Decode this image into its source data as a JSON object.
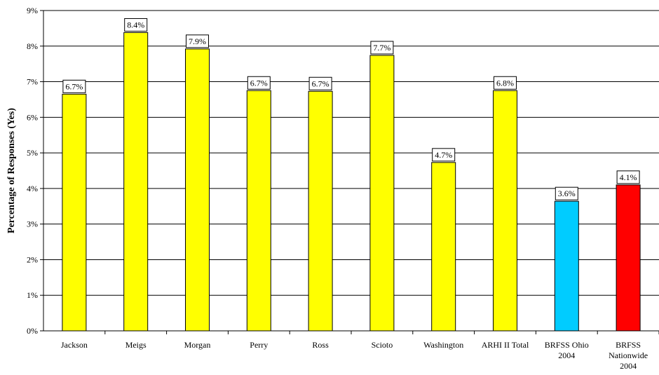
{
  "chart_data": {
    "type": "bar",
    "title": "",
    "xlabel": "",
    "ylabel": "Percentage of Responses (Yes)",
    "ylim": [
      0,
      9
    ],
    "y_ticks": [
      "0%",
      "1%",
      "2%",
      "3%",
      "4%",
      "5%",
      "6%",
      "7%",
      "8%",
      "9%"
    ],
    "grid": true,
    "categories": [
      [
        "Jackson"
      ],
      [
        "Meigs"
      ],
      [
        "Morgan"
      ],
      [
        "Perry"
      ],
      [
        "Ross"
      ],
      [
        "Scioto"
      ],
      [
        "Washington"
      ],
      [
        "ARHI II Total"
      ],
      [
        "BRFSS Ohio",
        "2004"
      ],
      [
        "BRFSS",
        "Nationwide",
        "2004"
      ]
    ],
    "values": [
      6.65,
      8.38,
      7.92,
      6.75,
      6.73,
      7.74,
      4.73,
      6.75,
      3.64,
      4.1
    ],
    "data_labels": [
      "6.7%",
      "8.4%",
      "7.9%",
      "6.7%",
      "6.7%",
      "7.7%",
      "4.7%",
      "6.8%",
      "3.6%",
      "4.1%"
    ],
    "colors": [
      "#ffff00",
      "#ffff00",
      "#ffff00",
      "#ffff00",
      "#ffff00",
      "#ffff00",
      "#ffff00",
      "#ffff00",
      "#00ccff",
      "#ff0000"
    ]
  }
}
